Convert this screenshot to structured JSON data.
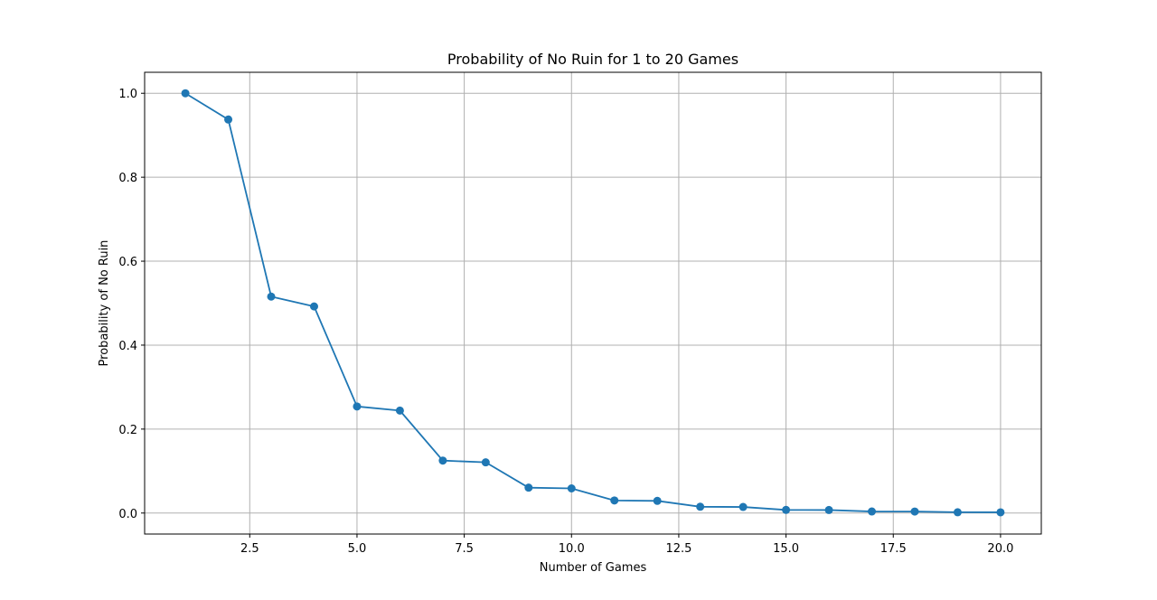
{
  "chart_data": {
    "type": "line",
    "title": "Probability of No Ruin for 1 to 20 Games",
    "xlabel": "Number of Games",
    "ylabel": "Probability of No Ruin",
    "xlim": [
      0.05,
      20.95
    ],
    "ylim": [
      -0.05,
      1.05
    ],
    "xticks": [
      2.5,
      5.0,
      7.5,
      10.0,
      12.5,
      15.0,
      17.5,
      20.0
    ],
    "xtick_labels": [
      "2.5",
      "5.0",
      "7.5",
      "10.0",
      "12.5",
      "15.0",
      "17.5",
      "20.0"
    ],
    "yticks": [
      0.0,
      0.2,
      0.4,
      0.6,
      0.8,
      1.0
    ],
    "ytick_labels": [
      "0.0",
      "0.2",
      "0.4",
      "0.6",
      "0.8",
      "1.0"
    ],
    "grid": true,
    "series": [
      {
        "color": "#1f77b4",
        "marker": "circle",
        "x": [
          1,
          2,
          3,
          4,
          5,
          6,
          7,
          8,
          9,
          10,
          11,
          12,
          13,
          14,
          15,
          16,
          17,
          18,
          19,
          20
        ],
        "y": [
          1.0,
          0.9375,
          0.5156,
          0.4922,
          0.2539,
          0.2441,
          0.125,
          0.1208,
          0.0605,
          0.0587,
          0.03,
          0.029,
          0.015,
          0.0145,
          0.0075,
          0.0072,
          0.0037,
          0.0036,
          0.0019,
          0.0018
        ]
      }
    ]
  }
}
